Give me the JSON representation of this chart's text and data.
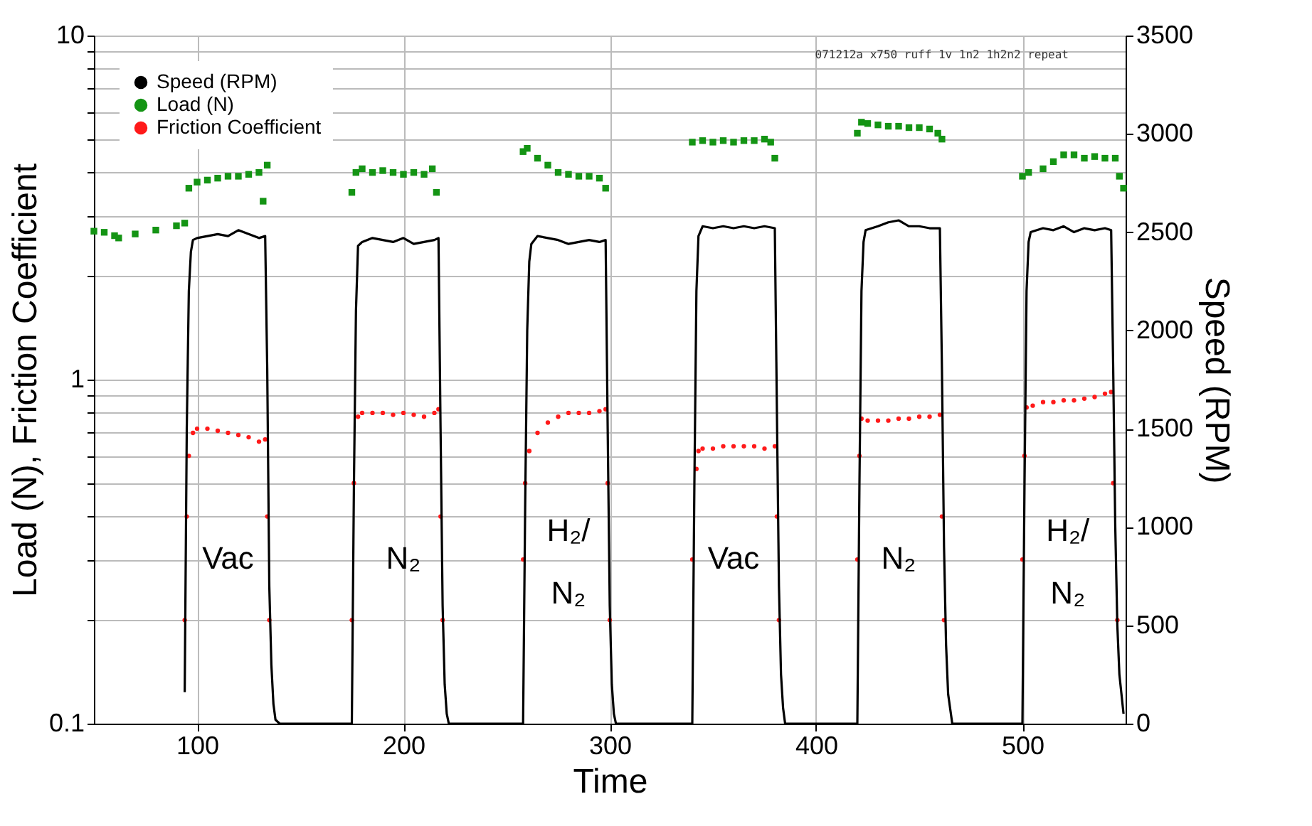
{
  "chart_data": {
    "type": "line",
    "xlabel": "Time",
    "ylabel": "Load (N), Friction Coefficient",
    "y2label": "Speed (RPM)",
    "xlim": [
      50,
      550
    ],
    "xticks": [
      100,
      200,
      300,
      400,
      500
    ],
    "ylim": [
      0.1,
      10
    ],
    "yticks": [
      0.1,
      {
        "value": 0.2,
        "label": null
      },
      {
        "value": 0.3,
        "label": null
      },
      {
        "value": 0.4,
        "label": null
      },
      {
        "value": 0.5,
        "label": null
      },
      {
        "value": 0.6,
        "label": null
      },
      {
        "value": 0.7,
        "label": null
      },
      {
        "value": 0.8,
        "label": null
      },
      {
        "value": 0.9,
        "label": null
      },
      1,
      {
        "value": 2,
        "label": null
      },
      {
        "value": 3,
        "label": null
      },
      {
        "value": 4,
        "label": null
      },
      {
        "value": 5,
        "label": null
      },
      {
        "value": 6,
        "label": null
      },
      {
        "value": 7,
        "label": null
      },
      {
        "value": 8,
        "label": null
      },
      {
        "value": 9,
        "label": null
      },
      10
    ],
    "y2lim": [
      0,
      3500
    ],
    "y2ticks": [
      0,
      500,
      1000,
      1500,
      2000,
      2500,
      3000,
      3500
    ],
    "log": true,
    "grid": true,
    "legend": "top left",
    "series": [
      {
        "name": "Speed (RPM)",
        "axis": "y2",
        "color": "#000000",
        "line_style": "solid",
        "x": [
          94,
          95,
          96,
          97,
          98,
          100,
          105,
          110,
          115,
          120,
          125,
          130,
          133,
          134,
          135,
          136,
          137,
          138,
          140,
          175,
          176,
          177,
          178,
          180,
          185,
          190,
          195,
          200,
          205,
          210,
          215,
          217,
          218,
          219,
          220,
          221,
          222,
          258,
          259,
          260,
          261,
          262,
          265,
          270,
          275,
          280,
          285,
          290,
          295,
          298,
          299,
          300,
          301,
          302,
          303,
          340,
          341,
          342,
          343,
          345,
          350,
          355,
          360,
          365,
          370,
          375,
          380,
          381,
          382,
          383,
          384,
          385,
          420,
          421,
          422,
          423,
          424,
          430,
          435,
          440,
          445,
          450,
          455,
          460,
          461,
          462,
          463,
          464,
          466,
          500,
          501,
          502,
          503,
          504,
          510,
          515,
          520,
          525,
          530,
          535,
          540,
          543,
          544,
          545,
          546,
          547,
          549
        ],
        "values": [
          160,
          1500,
          2200,
          2400,
          2460,
          2470,
          2480,
          2490,
          2480,
          2510,
          2490,
          2470,
          2480,
          1800,
          700,
          300,
          100,
          20,
          0,
          0,
          1200,
          2100,
          2430,
          2450,
          2470,
          2460,
          2450,
          2470,
          2440,
          2450,
          2460,
          2470,
          1500,
          600,
          200,
          50,
          0,
          0,
          1100,
          2000,
          2350,
          2440,
          2480,
          2470,
          2460,
          2440,
          2450,
          2460,
          2450,
          2460,
          1500,
          600,
          200,
          50,
          0,
          0,
          1200,
          2200,
          2480,
          2530,
          2520,
          2530,
          2520,
          2530,
          2520,
          2530,
          2520,
          1600,
          700,
          250,
          80,
          0,
          0,
          1200,
          2200,
          2450,
          2510,
          2530,
          2550,
          2560,
          2530,
          2530,
          2520,
          2520,
          1800,
          900,
          400,
          150,
          0,
          0,
          1200,
          2200,
          2450,
          2500,
          2520,
          2510,
          2530,
          2500,
          2520,
          2510,
          2520,
          2510,
          1800,
          1000,
          500,
          250,
          50
        ]
      },
      {
        "name": "Load (N)",
        "type": "scatter",
        "marker": "square",
        "color": "#149414",
        "x": [
          50,
          55,
          60,
          62,
          70,
          80,
          90,
          94,
          96,
          100,
          105,
          110,
          115,
          120,
          125,
          130,
          132,
          134,
          175,
          177,
          180,
          185,
          190,
          195,
          200,
          205,
          210,
          214,
          216,
          258,
          260,
          265,
          270,
          275,
          280,
          285,
          290,
          295,
          298,
          340,
          345,
          350,
          355,
          360,
          365,
          370,
          375,
          378,
          380,
          420,
          422,
          425,
          430,
          435,
          440,
          445,
          450,
          455,
          459,
          461,
          500,
          503,
          510,
          515,
          520,
          525,
          530,
          535,
          540,
          545,
          547,
          549
        ],
        "values": [
          2.7,
          2.68,
          2.62,
          2.58,
          2.65,
          2.72,
          2.8,
          2.85,
          3.6,
          3.75,
          3.8,
          3.85,
          3.9,
          3.9,
          3.95,
          4.0,
          3.3,
          4.2,
          3.5,
          4.0,
          4.1,
          4.0,
          4.05,
          4.0,
          3.95,
          4.0,
          3.95,
          4.1,
          3.5,
          4.6,
          4.7,
          4.4,
          4.2,
          4.0,
          3.95,
          3.9,
          3.9,
          3.85,
          3.6,
          4.9,
          4.95,
          4.9,
          4.95,
          4.9,
          4.95,
          4.95,
          5.0,
          4.9,
          4.4,
          5.2,
          5.6,
          5.55,
          5.5,
          5.45,
          5.45,
          5.4,
          5.4,
          5.35,
          5.2,
          5.0,
          3.9,
          4.0,
          4.1,
          4.3,
          4.5,
          4.5,
          4.4,
          4.45,
          4.4,
          4.4,
          3.9,
          3.6
        ]
      },
      {
        "name": "Friction Coefficient",
        "type": "scatter",
        "marker": "circle",
        "color": "#ff1a1a",
        "x": [
          94,
          95,
          96,
          98,
          100,
          105,
          110,
          115,
          120,
          125,
          130,
          133,
          134,
          135,
          175,
          176,
          178,
          180,
          185,
          190,
          195,
          200,
          205,
          210,
          215,
          217,
          218,
          219,
          258,
          259,
          261,
          265,
          270,
          275,
          280,
          285,
          290,
          295,
          298,
          299,
          300,
          340,
          342,
          343,
          345,
          350,
          355,
          360,
          365,
          370,
          375,
          380,
          381,
          382,
          420,
          421,
          422,
          425,
          430,
          435,
          440,
          445,
          450,
          455,
          460,
          461,
          462,
          500,
          501,
          502,
          505,
          510,
          515,
          520,
          525,
          530,
          535,
          540,
          543,
          544,
          546
        ],
        "values": [
          0.2,
          0.4,
          0.6,
          0.7,
          0.72,
          0.72,
          0.71,
          0.7,
          0.69,
          0.68,
          0.66,
          0.67,
          0.4,
          0.2,
          0.2,
          0.5,
          0.78,
          0.8,
          0.8,
          0.8,
          0.79,
          0.8,
          0.79,
          0.78,
          0.8,
          0.82,
          0.4,
          0.2,
          0.3,
          0.5,
          0.62,
          0.7,
          0.75,
          0.78,
          0.8,
          0.8,
          0.8,
          0.81,
          0.82,
          0.5,
          0.2,
          0.3,
          0.55,
          0.62,
          0.63,
          0.63,
          0.64,
          0.64,
          0.64,
          0.64,
          0.63,
          0.64,
          0.4,
          0.2,
          0.3,
          0.6,
          0.77,
          0.76,
          0.76,
          0.76,
          0.77,
          0.77,
          0.78,
          0.78,
          0.79,
          0.4,
          0.2,
          0.3,
          0.6,
          0.83,
          0.84,
          0.86,
          0.86,
          0.87,
          0.87,
          0.88,
          0.89,
          0.91,
          0.92,
          0.5,
          0.2
        ]
      }
    ],
    "annotations": [
      "071212a x750 ruff 1v 1n2 1h2n2 repeat",
      "Vac",
      "N₂",
      "H₂/\nN₂",
      "Vac",
      "N₂",
      "H₂/\nN₂"
    ]
  }
}
